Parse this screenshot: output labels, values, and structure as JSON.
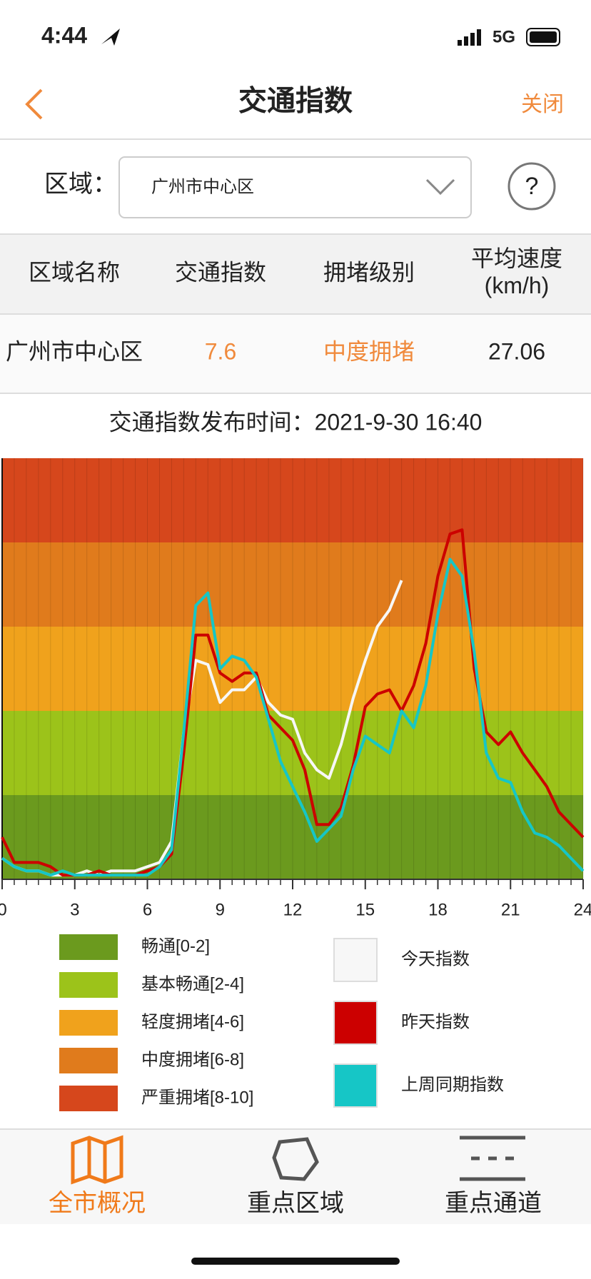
{
  "status_bar": {
    "time": "4:44",
    "network": "5G"
  },
  "header": {
    "title": "交通指数",
    "close": "关闭"
  },
  "region": {
    "label": "区域：",
    "selected": "广州市中心区",
    "help": "?"
  },
  "table": {
    "columns": [
      "区域名称",
      "交通指数",
      "拥堵级别",
      "平均速度\n(km/h)"
    ],
    "rows": [
      [
        "广州市中心区",
        "7.6",
        "中度拥堵",
        "27.06"
      ]
    ]
  },
  "publish_time": "交通指数发布时间：2021-9-30 16:40",
  "chart_data": {
    "type": "line",
    "xlim": [
      0,
      24
    ],
    "ylim": [
      0,
      10
    ],
    "xticks": [
      0,
      3,
      6,
      9,
      12,
      15,
      18,
      21,
      24
    ],
    "bands": [
      {
        "name": "畅通[0-2]",
        "color": "#6b9a1e",
        "from": 0,
        "to": 2
      },
      {
        "name": "基本畅通[2-4]",
        "color": "#9cc31a",
        "from": 2,
        "to": 4
      },
      {
        "name": "轻度拥堵[4-6]",
        "color": "#f0a21c",
        "from": 4,
        "to": 6
      },
      {
        "name": "中度拥堵[6-8]",
        "color": "#e07b1c",
        "from": 6,
        "to": 8
      },
      {
        "name": "严重拥堵[8-10]",
        "color": "#d6471c",
        "from": 8,
        "to": 10
      }
    ],
    "x": [
      0,
      0.5,
      1,
      1.5,
      2,
      2.5,
      3,
      3.5,
      4,
      4.5,
      5,
      5.5,
      6,
      6.5,
      7,
      7.5,
      8,
      8.5,
      9,
      9.5,
      10,
      10.5,
      11,
      11.5,
      12,
      12.5,
      13,
      13.5,
      14,
      14.5,
      15,
      15.5,
      16,
      16.5,
      17,
      17.5,
      18,
      18.5,
      19,
      19.5,
      20,
      20.5,
      21,
      21.5,
      22,
      22.5,
      23,
      23.5,
      24
    ],
    "series": [
      {
        "name": "今天指数",
        "color": "#f7f7f7",
        "values": [
          0.5,
          0.3,
          0.2,
          0.2,
          0.1,
          0.1,
          0.1,
          0.2,
          0.1,
          0.2,
          0.2,
          0.2,
          0.3,
          0.4,
          0.9,
          3.5,
          5.2,
          5.1,
          4.2,
          4.5,
          4.5,
          4.8,
          4.2,
          3.9,
          3.8,
          3.0,
          2.6,
          2.4,
          3.2,
          4.3,
          5.2,
          6.0,
          6.4,
          7.1,
          null,
          null,
          null,
          null,
          null,
          null,
          null,
          null,
          null,
          null,
          null,
          null,
          null,
          null,
          null
        ]
      },
      {
        "name": "昨天指数",
        "color": "#cc0000",
        "values": [
          1.0,
          0.4,
          0.4,
          0.4,
          0.3,
          0.1,
          0.1,
          0.1,
          0.2,
          0.1,
          0.1,
          0.1,
          0.2,
          0.3,
          0.6,
          3.0,
          5.8,
          5.8,
          4.9,
          4.7,
          4.9,
          4.9,
          3.9,
          3.6,
          3.3,
          2.6,
          1.3,
          1.3,
          1.7,
          2.7,
          4.1,
          4.4,
          4.5,
          4.0,
          4.6,
          5.6,
          7.2,
          8.2,
          8.3,
          5.0,
          3.5,
          3.2,
          3.5,
          3.0,
          2.6,
          2.2,
          1.6,
          1.3,
          1.0
        ]
      },
      {
        "name": "上周同期指数",
        "color": "#16c6c6",
        "values": [
          0.5,
          0.3,
          0.2,
          0.2,
          0.1,
          0.2,
          0.1,
          0.1,
          0.1,
          0.1,
          0.1,
          0.1,
          0.1,
          0.3,
          0.7,
          3.5,
          6.5,
          6.8,
          5.0,
          5.3,
          5.2,
          4.8,
          3.8,
          2.8,
          2.2,
          1.6,
          0.9,
          1.2,
          1.5,
          2.6,
          3.4,
          3.2,
          3.0,
          4.0,
          3.6,
          4.6,
          6.3,
          7.6,
          7.2,
          5.4,
          3.0,
          2.4,
          2.3,
          1.6,
          1.1,
          1.0,
          0.8,
          0.5,
          0.2
        ]
      }
    ]
  },
  "tabs": [
    "全市概况",
    "重点区域",
    "重点通道"
  ]
}
